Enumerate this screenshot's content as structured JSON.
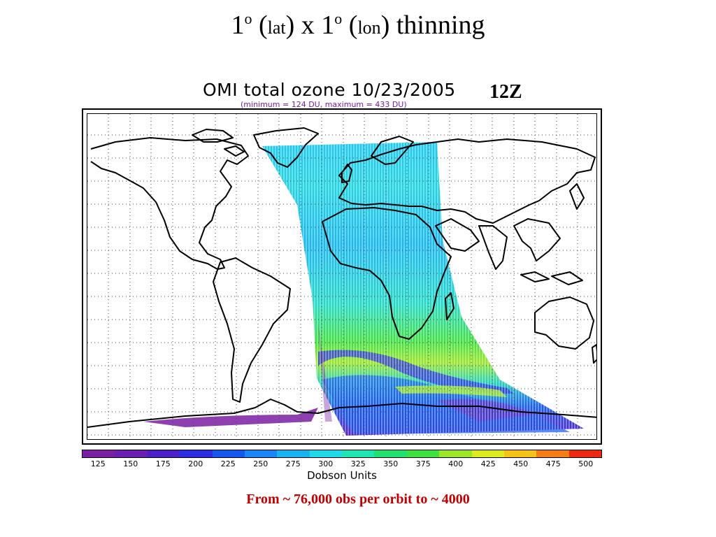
{
  "slide": {
    "title_parts": [
      "1",
      "o",
      " (",
      "lat",
      ") x 1",
      "o",
      " (",
      "lon",
      ") thinning"
    ],
    "caption": "From ~ 76,000 obs per orbit to ~ 4000"
  },
  "map": {
    "title": "OMI total ozone 10/23/2005",
    "subtitle": "(minimum = 124 DU, maximum = 433 DU)",
    "time_label": "12Z"
  },
  "colorbar": {
    "units_label": "Dobson Units",
    "tick_labels": [
      "125",
      "150",
      "175",
      "200",
      "225",
      "250",
      "275",
      "300",
      "325",
      "350",
      "375",
      "400",
      "425",
      "450",
      "475",
      "500"
    ],
    "colors": [
      "#7b1fa2",
      "#6a1fb0",
      "#4b1fc8",
      "#2a2ee0",
      "#1457f0",
      "#1a85f5",
      "#19b3f2",
      "#1fd8e8",
      "#1fe6b0",
      "#22e070",
      "#40e040",
      "#9be52a",
      "#dceb20",
      "#f5c21a",
      "#f57d15",
      "#ec2a10"
    ]
  }
}
